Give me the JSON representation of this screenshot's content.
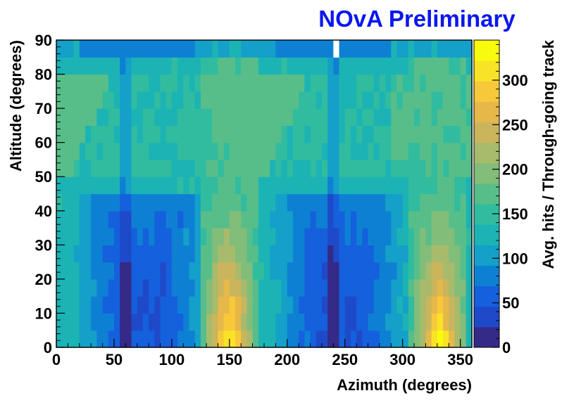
{
  "banner": "NOvA Preliminary",
  "chart_data": {
    "type": "heatmap",
    "xlabel": "Azimuth (degrees)",
    "ylabel": "Altitude (degrees)",
    "zlabel": "Avg. hits / Through-going track",
    "xlim": [
      0,
      360
    ],
    "ylim": [
      0,
      90
    ],
    "zlim": [
      0,
      345
    ],
    "x_ticks": [
      0,
      50,
      100,
      150,
      200,
      250,
      300,
      350
    ],
    "y_ticks": [
      0,
      10,
      20,
      30,
      40,
      50,
      60,
      70,
      80,
      90
    ],
    "z_ticks": [
      0,
      50,
      100,
      150,
      200,
      250,
      300
    ],
    "x_bin_width": 5,
    "y_bin_width": 5,
    "colormap": [
      "#352a87",
      "#1e4ac9",
      "#1560dc",
      "#0e80d4",
      "#14a0c8",
      "#1cb3b5",
      "#31bc9f",
      "#58be89",
      "#82bd7a",
      "#a8ba6c",
      "#cab55d",
      "#e6b84a",
      "#f7c93a",
      "#f9e327",
      "#f9fb0e"
    ],
    "features": {
      "hot_spots": [
        {
          "azimuth_center": 150,
          "azimuth_width": 25,
          "peak_value": 340,
          "peak_altitude": 0
        },
        {
          "azimuth_center": 332,
          "azimuth_width": 25,
          "peak_value": 340,
          "peak_altitude": 0
        }
      ],
      "low_basins": [
        {
          "azimuth_center": 75,
          "azimuth_halfwidth": 65,
          "min_value": 50,
          "top_altitude": 45
        },
        {
          "azimuth_center": 245,
          "azimuth_halfwidth": 65,
          "min_value": 50,
          "top_altitude": 45
        }
      ],
      "dark_streaks_azimuth": [
        62,
        242
      ],
      "mid_altitude_value": 130,
      "upper_band_value": 175,
      "empty_bin": {
        "azimuth": 240,
        "altitude": 85
      }
    }
  }
}
